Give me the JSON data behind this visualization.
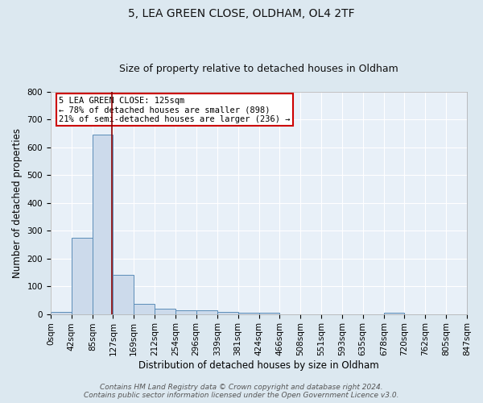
{
  "title": "5, LEA GREEN CLOSE, OLDHAM, OL4 2TF",
  "subtitle": "Size of property relative to detached houses in Oldham",
  "xlabel": "Distribution of detached houses by size in Oldham",
  "ylabel": "Number of detached properties",
  "footer_line1": "Contains HM Land Registry data © Crown copyright and database right 2024.",
  "footer_line2": "Contains public sector information licensed under the Open Government Licence v3.0.",
  "annotation_line1": "5 LEA GREEN CLOSE: 125sqm",
  "annotation_line2": "← 78% of detached houses are smaller (898)",
  "annotation_line3": "21% of semi-detached houses are larger (236) →",
  "bar_edges": [
    0,
    42,
    85,
    127,
    169,
    212,
    254,
    296,
    339,
    381,
    424,
    466,
    508,
    551,
    593,
    635,
    678,
    720,
    762,
    805,
    847
  ],
  "bar_heights": [
    8,
    275,
    645,
    140,
    38,
    20,
    13,
    12,
    8,
    5,
    5,
    0,
    0,
    0,
    0,
    0,
    5,
    0,
    0,
    0
  ],
  "bar_color": "#ccdaeb",
  "bar_edge_color": "#5b8db8",
  "bar_linewidth": 0.7,
  "vline_x": 125,
  "vline_color": "#8b0000",
  "vline_linewidth": 1.2,
  "ylim": [
    0,
    800
  ],
  "yticks": [
    0,
    100,
    200,
    300,
    400,
    500,
    600,
    700,
    800
  ],
  "xtick_labels": [
    "0sqm",
    "42sqm",
    "85sqm",
    "127sqm",
    "169sqm",
    "212sqm",
    "254sqm",
    "296sqm",
    "339sqm",
    "381sqm",
    "424sqm",
    "466sqm",
    "508sqm",
    "551sqm",
    "593sqm",
    "635sqm",
    "678sqm",
    "720sqm",
    "762sqm",
    "805sqm",
    "847sqm"
  ],
  "background_color": "#dce8f0",
  "plot_background_color": "#e8f0f8",
  "grid_color": "#ffffff",
  "title_fontsize": 10,
  "subtitle_fontsize": 9,
  "axis_label_fontsize": 8.5,
  "tick_fontsize": 7.5,
  "footer_fontsize": 6.5,
  "annotation_fontsize": 7.5,
  "annotation_box_color": "white",
  "annotation_box_edge": "#cc0000"
}
